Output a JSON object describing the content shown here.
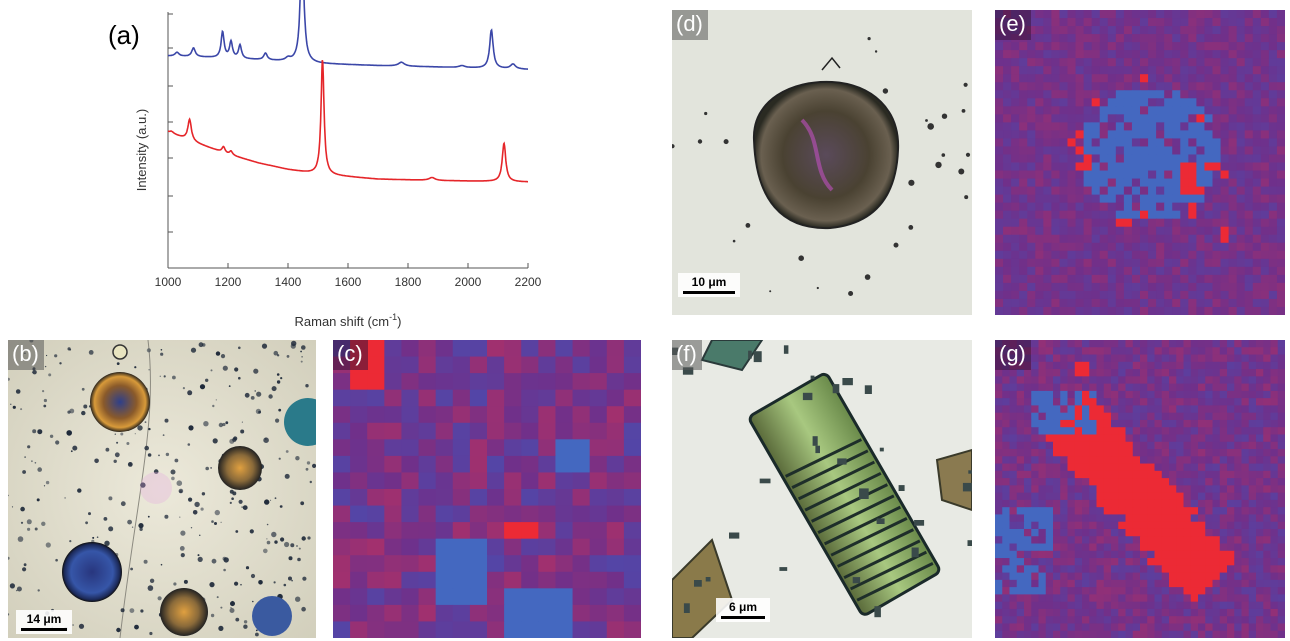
{
  "panels": {
    "a": "(a)",
    "b": "(b)",
    "c": "(c)",
    "d": "(d)",
    "e": "(e)",
    "f": "(f)",
    "g": "(g)"
  },
  "scale_bars": {
    "b": "14 μm",
    "d": "10 μm",
    "f": "6 μm"
  },
  "colors": {
    "blue_series": "#3b47a8",
    "red_series": "#e5262a",
    "map_background": "#70308a",
    "map_blue": "#4468c0",
    "map_red": "#ec2a35"
  },
  "chart_data": {
    "type": "line",
    "xlabel": "Raman shift (cm",
    "xlabel_sup": "-1",
    "xlabel_end": ")",
    "ylabel": "Intensity (a.u.)",
    "xlim": [
      1000,
      2200
    ],
    "xticks": [
      "1000",
      "1200",
      "1400",
      "1600",
      "1800",
      "2000",
      "2200"
    ],
    "grid": false,
    "series": [
      {
        "color": "#3b47a8",
        "baseline": [
          [
            1000,
            0.7
          ],
          [
            1100,
            0.69
          ],
          [
            1300,
            0.66
          ],
          [
            1500,
            0.62
          ],
          [
            1700,
            0.6
          ],
          [
            1900,
            0.585
          ],
          [
            2200,
            0.56
          ]
        ],
        "peaks": [
          [
            1030,
            0.04,
            8
          ],
          [
            1085,
            0.09,
            7
          ],
          [
            1182,
            0.27,
            6
          ],
          [
            1210,
            0.17,
            6
          ],
          [
            1240,
            0.14,
            6
          ],
          [
            1325,
            0.07,
            7
          ],
          [
            1400,
            0.03,
            10
          ],
          [
            1447,
            1.25,
            7
          ],
          [
            1778,
            0.04,
            12
          ],
          [
            1980,
            0.02,
            12
          ],
          [
            2078,
            0.4,
            7
          ],
          [
            2150,
            0.05,
            10
          ]
        ]
      },
      {
        "color": "#e5262a",
        "baseline": [
          [
            1000,
            0.52
          ],
          [
            1100,
            0.4
          ],
          [
            1200,
            0.29
          ],
          [
            1300,
            0.2
          ],
          [
            1400,
            0.13
          ],
          [
            1500,
            0.08
          ],
          [
            1700,
            0.03
          ],
          [
            1900,
            0.015
          ],
          [
            2200,
            0.0
          ]
        ],
        "peaks": [
          [
            1012,
            0.02,
            8
          ],
          [
            1072,
            0.22,
            7
          ],
          [
            1185,
            0.06,
            6
          ],
          [
            1210,
            0.04,
            6
          ],
          [
            1515,
            1.2,
            6
          ],
          [
            1880,
            0.03,
            12
          ],
          [
            2120,
            0.4,
            7
          ]
        ]
      }
    ]
  }
}
